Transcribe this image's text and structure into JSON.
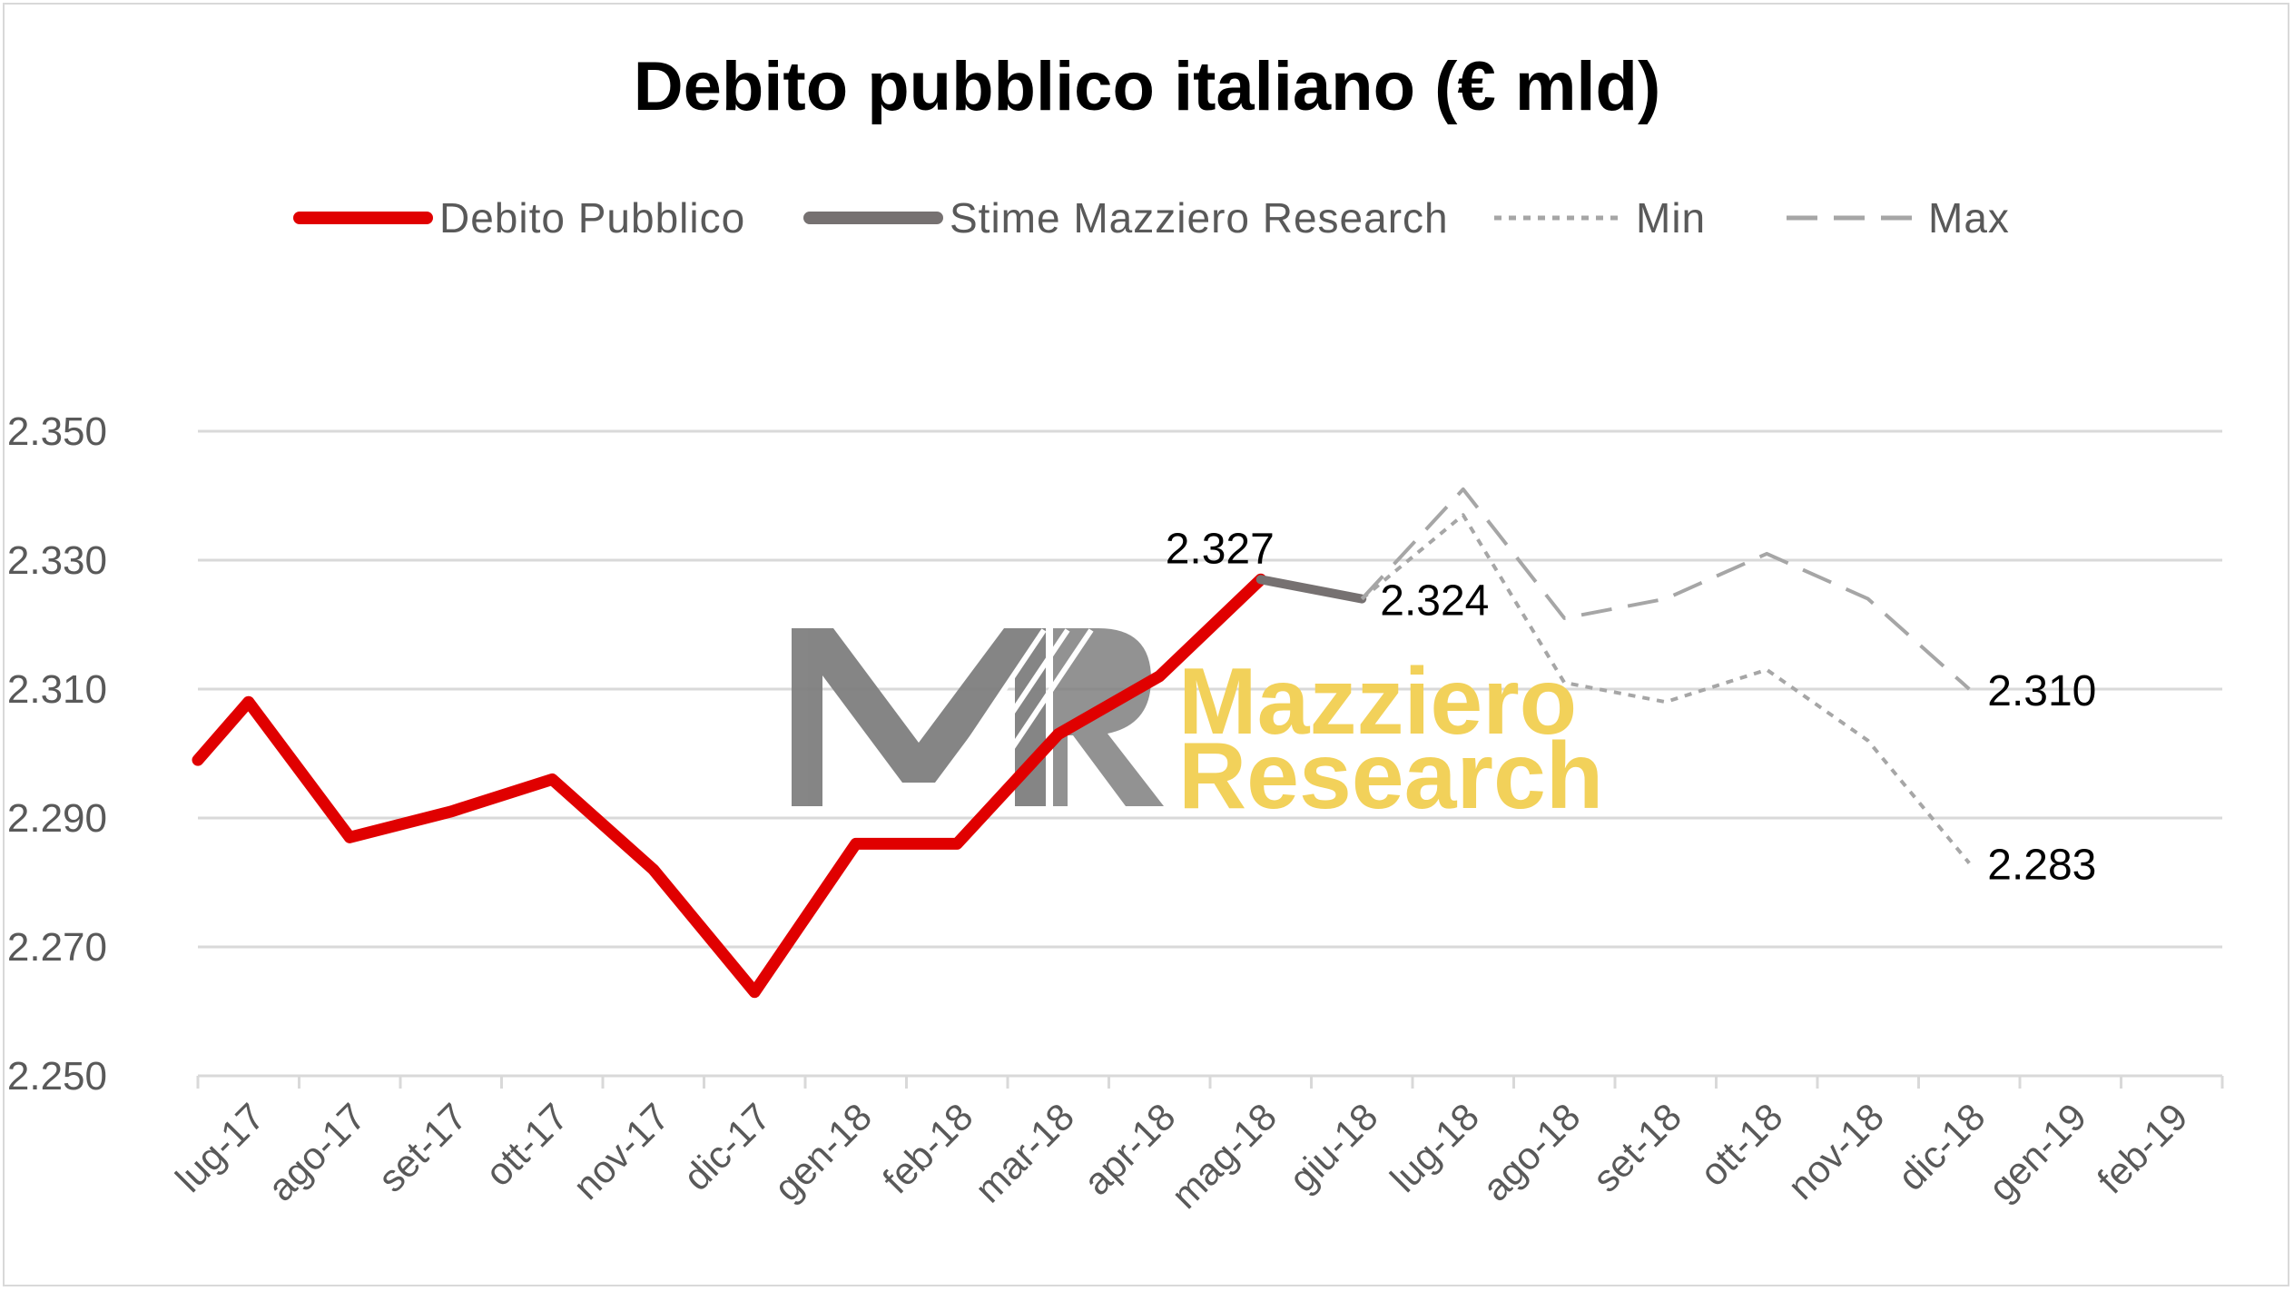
{
  "chart_data": {
    "type": "line",
    "title": "Debito pubblico italiano (€ mld)",
    "categories": [
      "lug-17",
      "ago-17",
      "set-17",
      "ott-17",
      "nov-17",
      "dic-17",
      "gen-18",
      "feb-18",
      "mar-18",
      "apr-18",
      "mag-18",
      "giu-18",
      "lug-18",
      "ago-18",
      "set-18",
      "ott-18",
      "nov-18",
      "dic-18",
      "gen-19",
      "feb-19"
    ],
    "ylim": [
      2250,
      2350
    ],
    "yticks": [
      "2.250",
      "2.270",
      "2.290",
      "2.310",
      "2.330",
      "2.350"
    ],
    "yticks_values": [
      2250,
      2270,
      2290,
      2310,
      2330,
      2350
    ],
    "grid": true,
    "legend_position": "top",
    "series": [
      {
        "name": "Debito Pubblico",
        "color": "#e00000",
        "style": "solid",
        "points": [
          [
            -0.5,
            2299
          ],
          [
            0,
            2308
          ],
          [
            1,
            2287
          ],
          [
            2,
            2291
          ],
          [
            3,
            2296
          ],
          [
            4,
            2282
          ],
          [
            5,
            2263
          ],
          [
            6,
            2286
          ],
          [
            7,
            2286
          ],
          [
            8,
            2303
          ],
          [
            9,
            2312
          ],
          [
            10,
            2327
          ]
        ]
      },
      {
        "name": "Stime Mazziero Research",
        "color": "#767171",
        "style": "solid",
        "points": [
          [
            10,
            2327
          ],
          [
            11,
            2324
          ]
        ]
      },
      {
        "name": "Min",
        "color": "#a6a6a6",
        "style": "dotted",
        "points": [
          [
            11,
            2324
          ],
          [
            12,
            2337
          ],
          [
            13,
            2311
          ],
          [
            14,
            2308
          ],
          [
            15,
            2313
          ],
          [
            16,
            2302
          ],
          [
            17,
            2283
          ]
        ]
      },
      {
        "name": "Max",
        "color": "#a6a6a6",
        "style": "dashed",
        "points": [
          [
            11,
            2324
          ],
          [
            12,
            2341
          ],
          [
            13,
            2321
          ],
          [
            14,
            2324
          ],
          [
            15,
            2331
          ],
          [
            16,
            2324
          ],
          [
            17,
            2310
          ]
        ]
      }
    ],
    "data_labels": [
      {
        "text": "2.327",
        "x": 10,
        "y": 2327,
        "side": "above"
      },
      {
        "text": "2.324",
        "x": 11,
        "y": 2324,
        "side": "right"
      },
      {
        "text": "2.310",
        "x": 17,
        "y": 2310,
        "side": "right"
      },
      {
        "text": "2.283",
        "x": 17,
        "y": 2283,
        "side": "right"
      }
    ]
  },
  "watermark": {
    "monogram": "MR",
    "line1": "Mazziero",
    "line2": "Research",
    "colors": {
      "monogram": "#7f7f7f",
      "text": "#f2d15a"
    }
  }
}
